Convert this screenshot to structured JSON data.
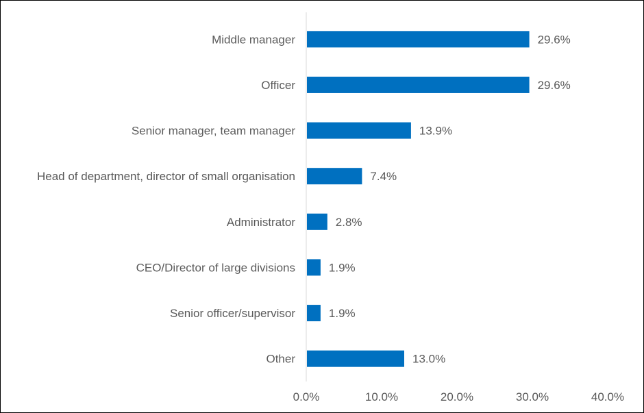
{
  "chart_data": {
    "type": "bar",
    "orientation": "horizontal",
    "title": "",
    "xlabel": "",
    "ylabel": "",
    "categories": [
      "Middle manager",
      "Officer",
      "Senior manager, team manager",
      "Head of department, director of small organisation",
      "Administrator",
      "CEO/Director of large divisions",
      "Senior officer/supervisor",
      "Other"
    ],
    "values": [
      29.6,
      29.6,
      13.9,
      7.4,
      2.8,
      1.9,
      1.9,
      13.0
    ],
    "value_labels": [
      "29.6%",
      "29.6%",
      "13.9%",
      "7.4%",
      "2.8%",
      "1.9%",
      "1.9%",
      "13.0%"
    ],
    "xlim": [
      0,
      40
    ],
    "ticks": [
      0,
      10,
      20,
      30,
      40
    ],
    "tick_labels": [
      "0.0%",
      "10.0%",
      "20.0%",
      "30.0%",
      "40.0%"
    ],
    "grid": false,
    "legend": "none",
    "bar_color": "#0070C0"
  }
}
